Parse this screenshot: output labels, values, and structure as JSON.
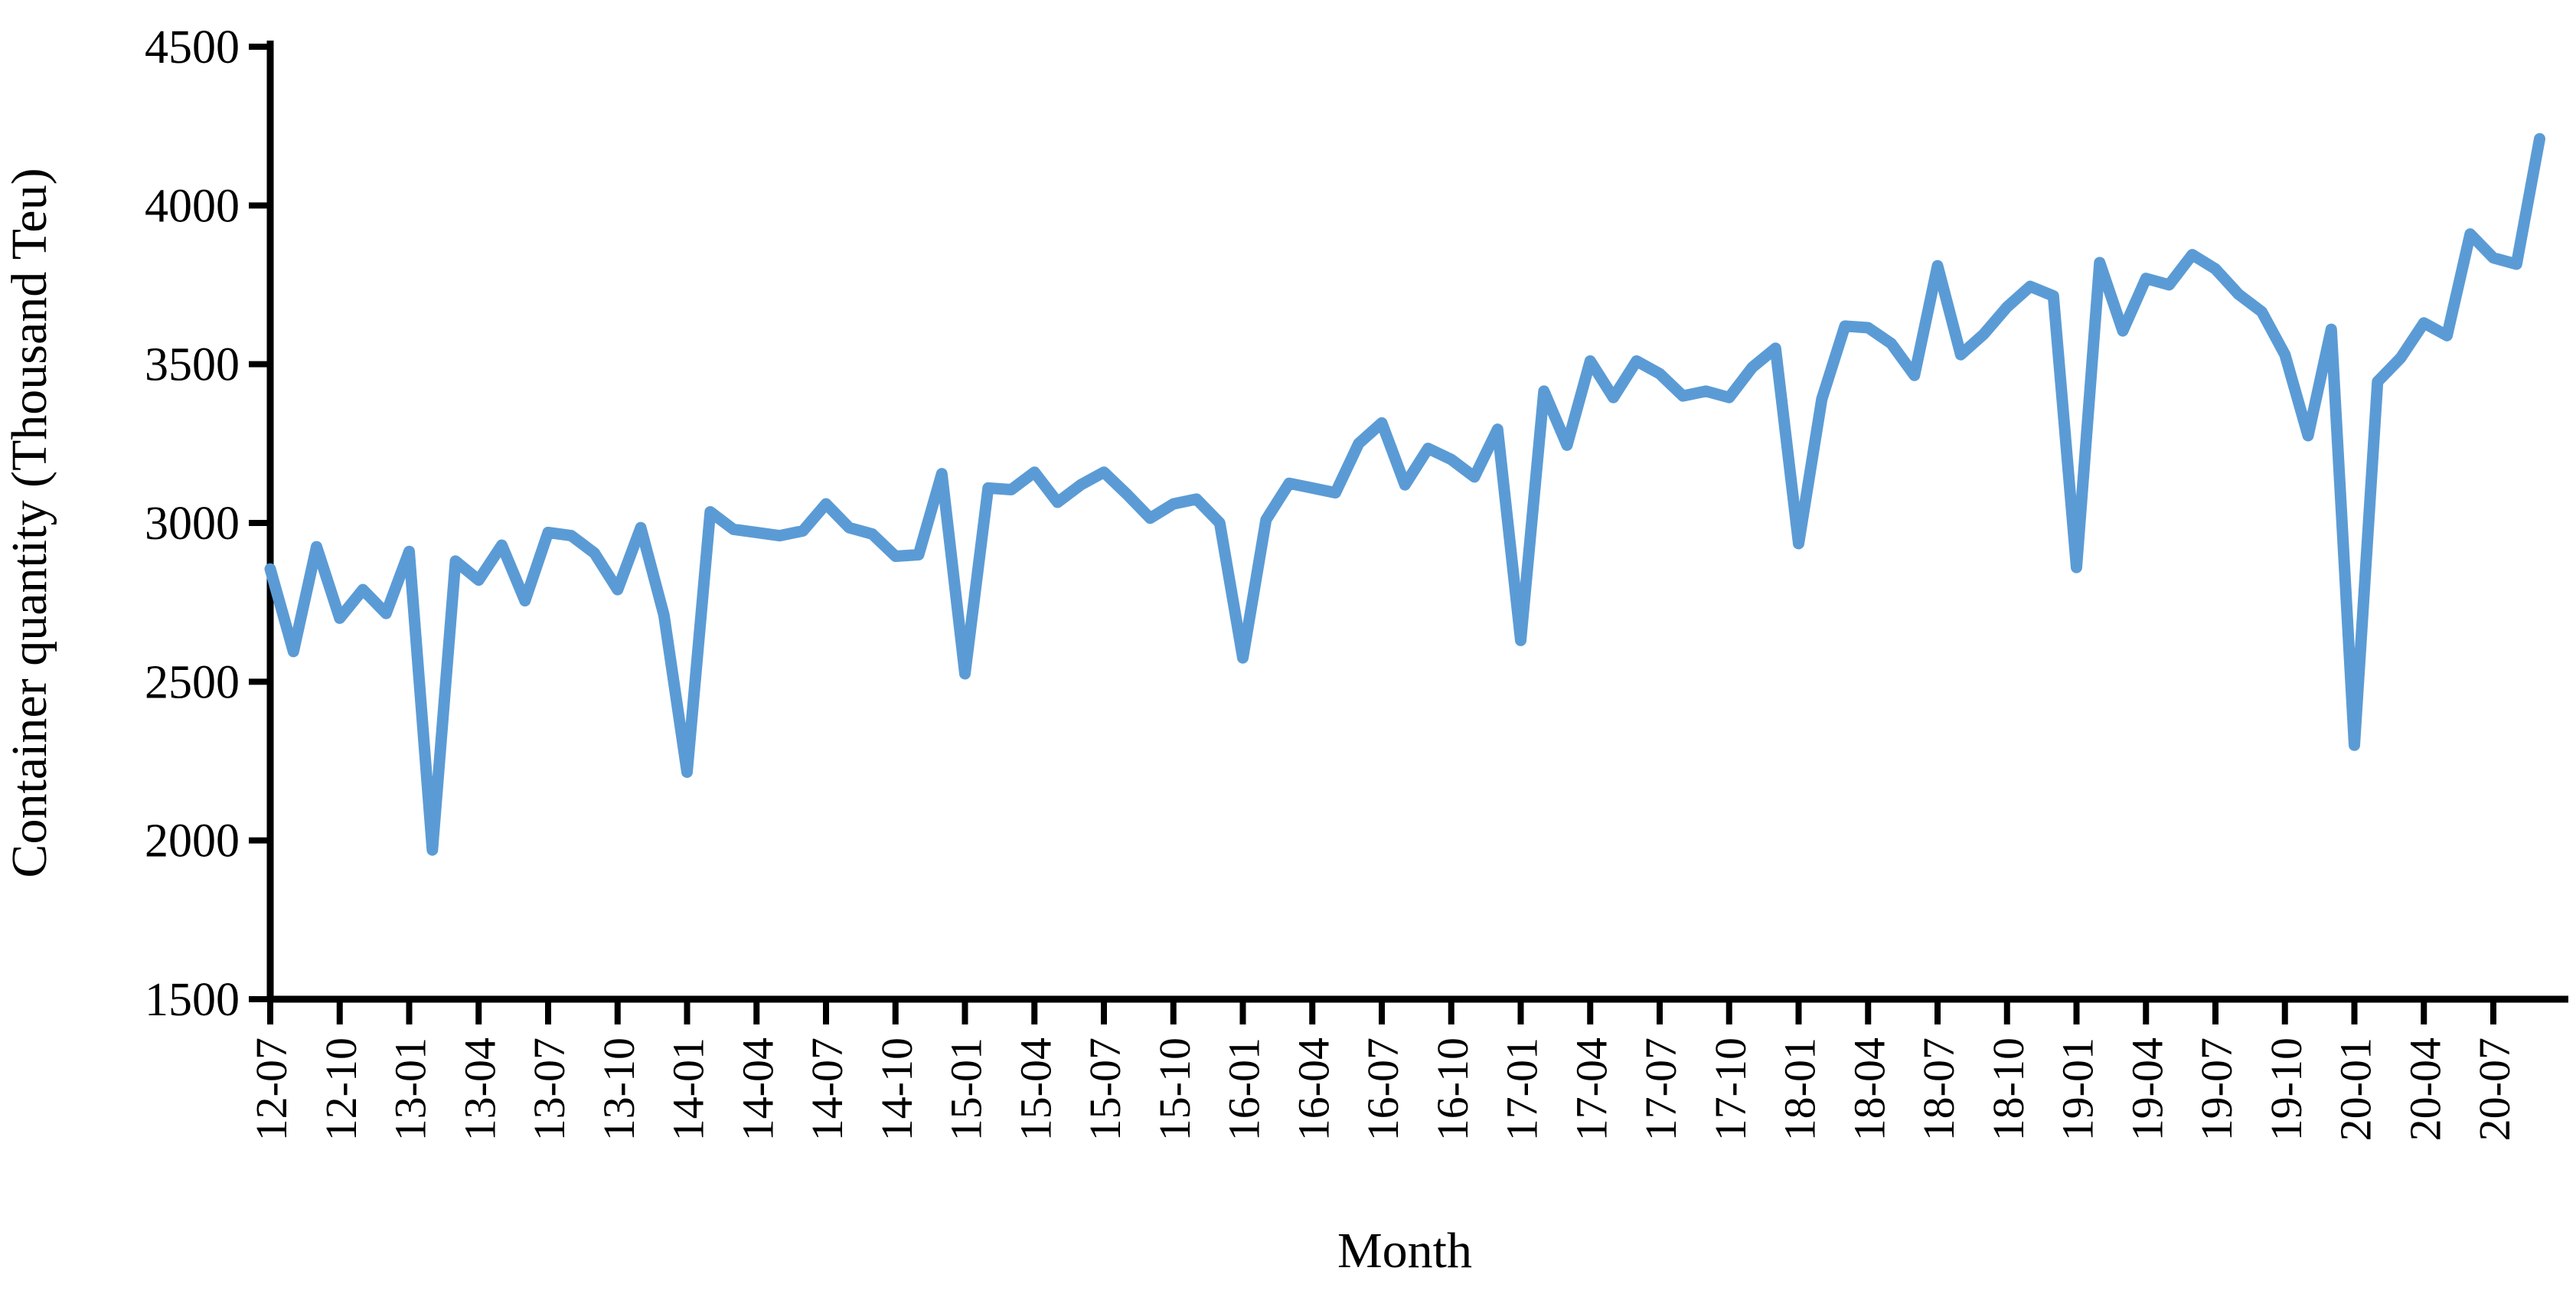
{
  "chart_data": {
    "type": "line",
    "title": "",
    "xlabel": "Month",
    "ylabel": "Container quantity (Thousand Teu)",
    "legend": "none",
    "grid": "off",
    "line_color": "#5B9BD5",
    "line_width": 15,
    "axis_color": "#000000",
    "ylim": [
      1500,
      4500
    ],
    "y_ticks": [
      4500,
      4000,
      3500,
      3000,
      2500,
      2000,
      1500
    ],
    "x_tick_labels": [
      "12-07",
      "12-10",
      "13-01",
      "13-04",
      "13-07",
      "13-10",
      "14-01",
      "14-04",
      "14-07",
      "14-10",
      "15-01",
      "15-04",
      "15-07",
      "15-10",
      "16-01",
      "16-04",
      "16-07",
      "16-10",
      "17-01",
      "17-04",
      "17-07",
      "17-10",
      "18-01",
      "18-04",
      "18-07",
      "18-10",
      "19-01",
      "19-04",
      "19-07",
      "19-10",
      "20-01",
      "20-04",
      "20-07"
    ],
    "x_tick_every_n_points": 3,
    "x": [
      "2012-07",
      "2012-08",
      "2012-09",
      "2012-10",
      "2012-11",
      "2012-12",
      "2013-01",
      "2013-02",
      "2013-03",
      "2013-04",
      "2013-05",
      "2013-06",
      "2013-07",
      "2013-08",
      "2013-09",
      "2013-10",
      "2013-11",
      "2013-12",
      "2014-01",
      "2014-02",
      "2014-03",
      "2014-04",
      "2014-05",
      "2014-06",
      "2014-07",
      "2014-08",
      "2014-09",
      "2014-10",
      "2014-11",
      "2014-12",
      "2015-01",
      "2015-02",
      "2015-03",
      "2015-04",
      "2015-05",
      "2015-06",
      "2015-07",
      "2015-08",
      "2015-09",
      "2015-10",
      "2015-11",
      "2015-12",
      "2016-01",
      "2016-02",
      "2016-03",
      "2016-04",
      "2016-05",
      "2016-06",
      "2016-07",
      "2016-08",
      "2016-09",
      "2016-10",
      "2016-11",
      "2016-12",
      "2017-01",
      "2017-02",
      "2017-03",
      "2017-04",
      "2017-05",
      "2017-06",
      "2017-07",
      "2017-08",
      "2017-09",
      "2017-10",
      "2017-11",
      "2017-12",
      "2018-01",
      "2018-02",
      "2018-03",
      "2018-04",
      "2018-05",
      "2018-06",
      "2018-07",
      "2018-08",
      "2018-09",
      "2018-10",
      "2018-11",
      "2018-12",
      "2019-01",
      "2019-02",
      "2019-03",
      "2019-04",
      "2019-05",
      "2019-06",
      "2019-07",
      "2019-08",
      "2019-09",
      "2019-10",
      "2019-11",
      "2019-12",
      "2020-01",
      "2020-02",
      "2020-03",
      "2020-04",
      "2020-05",
      "2020-06",
      "2020-07",
      "2020-08",
      "2020-09"
    ],
    "values": [
      2855,
      2595,
      2925,
      2700,
      2790,
      2715,
      2910,
      1970,
      2880,
      2820,
      2930,
      2755,
      2970,
      2960,
      2905,
      2790,
      2985,
      2710,
      2215,
      3035,
      2980,
      2970,
      2960,
      2975,
      3060,
      2985,
      2965,
      2895,
      2900,
      3155,
      2525,
      3110,
      3105,
      3160,
      3065,
      3120,
      3160,
      3090,
      3015,
      3060,
      3075,
      3000,
      2575,
      3010,
      3125,
      3110,
      3095,
      3250,
      3315,
      3120,
      3235,
      3200,
      3145,
      3295,
      2630,
      3415,
      3245,
      3510,
      3395,
      3510,
      3470,
      3400,
      3415,
      3395,
      3490,
      3550,
      2935,
      3390,
      3620,
      3615,
      3565,
      3465,
      3810,
      3530,
      3595,
      3680,
      3745,
      3715,
      2860,
      3820,
      3605,
      3770,
      3750,
      3845,
      3800,
      3720,
      3665,
      3530,
      3275,
      3610,
      2300,
      3445,
      3520,
      3630,
      3590,
      3910,
      3835,
      3815,
      4210
    ]
  },
  "axis_titles": {
    "y": "Container quantity (Thousand Teu)",
    "x": "Month"
  }
}
